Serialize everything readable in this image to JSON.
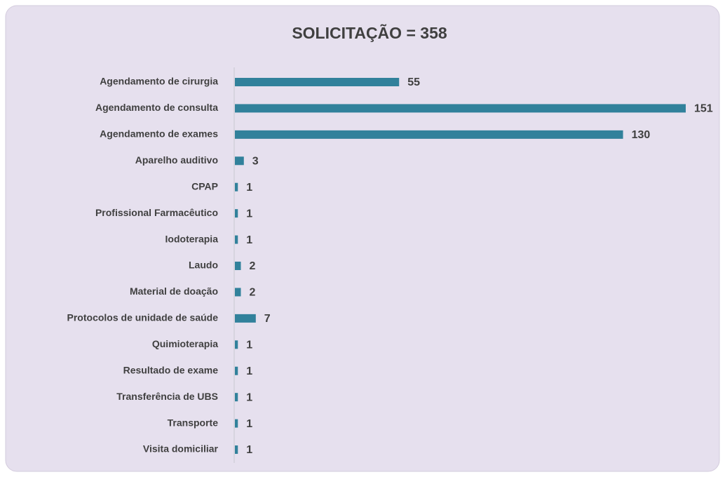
{
  "chart_data": {
    "type": "hbar",
    "title": "SOLICITAÇÃO = 358",
    "categories": [
      "Agendamento de cirurgia",
      "Agendamento de consulta",
      "Agendamento de exames",
      "Aparelho auditivo",
      "CPAP",
      "Profissional Farmacêutico",
      "Iodoterapia",
      "Laudo",
      "Material de doação",
      "Protocolos de unidade de saúde",
      "Quimioterapia",
      "Resultado de exame",
      "Transferência de UBS",
      "Transporte",
      "Visita domiciliar"
    ],
    "values": [
      55,
      151,
      130,
      3,
      1,
      1,
      1,
      2,
      2,
      7,
      1,
      1,
      1,
      1,
      1
    ],
    "color": "#31819b"
  }
}
